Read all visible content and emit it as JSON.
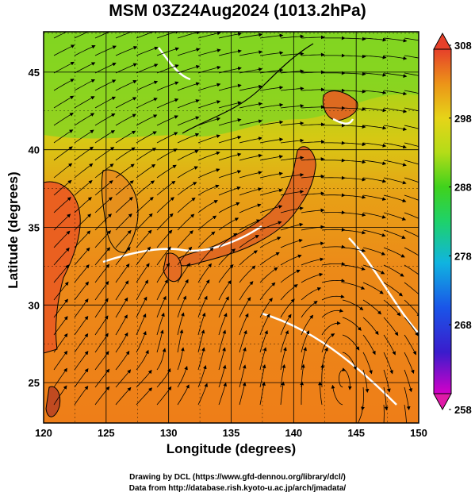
{
  "title": "MSM 03Z24Aug2024 (1013.2hPa)",
  "axes": {
    "xlabel": "Longitude (degrees)",
    "ylabel": "Latitude  (degrees)",
    "x_ticks": [
      "120",
      "125",
      "130",
      "135",
      "140",
      "145",
      "150"
    ],
    "y_ticks": [
      "25",
      "30",
      "35",
      "40",
      "45"
    ],
    "lon_range": [
      120,
      150
    ],
    "lat_range": [
      22.4,
      47.6
    ]
  },
  "colorbar": {
    "ticks": [
      "308",
      "298",
      "288",
      "278",
      "268",
      "258"
    ],
    "range": [
      258,
      308
    ]
  },
  "credits": {
    "line1": "Drawing by DCL (https://www.gfd-dennou.org/library/dcl/)",
    "line2": "Data from http://database.rish.kyoto-u.ac.jp/arch/jmadata/"
  }
}
